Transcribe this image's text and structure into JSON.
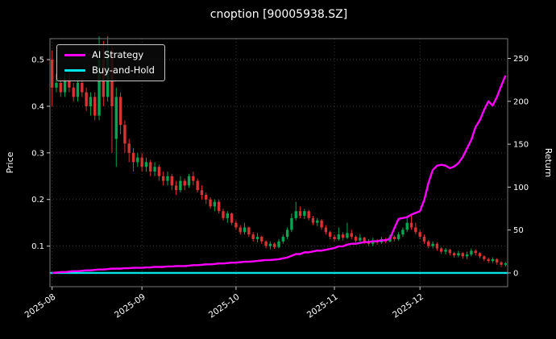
{
  "window": {
    "background": "#000000",
    "text_color": "#ffffff"
  },
  "chart_data": {
    "type": "candlestick+line",
    "title": "cnoption [90005938.SZ]",
    "ylabel_left": "Price",
    "ylabel_right": "Return",
    "legend_position": "upper-left",
    "grid": {
      "style": "dotted",
      "color": "rgba(255,255,255,0.22)"
    },
    "x_tick_labels": [
      "2025-08",
      "2025-09",
      "2025-10",
      "2025-11",
      "2025-12"
    ],
    "x_tick_indices": [
      0,
      21,
      43,
      66,
      86
    ],
    "left_ticks": [
      0.1,
      0.2,
      0.3,
      0.4,
      0.5
    ],
    "right_ticks": [
      0,
      50,
      100,
      150,
      200,
      250
    ],
    "left_range": [
      0.013,
      0.545
    ],
    "right_range": [
      -16,
      273
    ],
    "candles": {
      "up_color": "#00a650",
      "down_color": "#d83232",
      "ohlc": [
        [
          0.5,
          0.52,
          0.4,
          0.44
        ],
        [
          0.44,
          0.47,
          0.43,
          0.45
        ],
        [
          0.45,
          0.46,
          0.42,
          0.43
        ],
        [
          0.43,
          0.47,
          0.42,
          0.46
        ],
        [
          0.46,
          0.48,
          0.43,
          0.44
        ],
        [
          0.44,
          0.45,
          0.41,
          0.42
        ],
        [
          0.42,
          0.46,
          0.41,
          0.45
        ],
        [
          0.45,
          0.46,
          0.42,
          0.43
        ],
        [
          0.43,
          0.44,
          0.39,
          0.4
        ],
        [
          0.4,
          0.43,
          0.38,
          0.42
        ],
        [
          0.42,
          0.43,
          0.37,
          0.38
        ],
        [
          0.38,
          0.55,
          0.37,
          0.5
        ],
        [
          0.5,
          0.54,
          0.4,
          0.42
        ],
        [
          0.42,
          0.55,
          0.41,
          0.52
        ],
        [
          0.52,
          0.53,
          0.3,
          0.4
        ],
        [
          0.33,
          0.44,
          0.27,
          0.42
        ],
        [
          0.42,
          0.43,
          0.34,
          0.36
        ],
        [
          0.36,
          0.37,
          0.3,
          0.32
        ],
        [
          0.32,
          0.33,
          0.28,
          0.3
        ],
        [
          0.3,
          0.31,
          0.26,
          0.28
        ],
        [
          0.28,
          0.3,
          0.27,
          0.29
        ],
        [
          0.29,
          0.3,
          0.26,
          0.27
        ],
        [
          0.27,
          0.29,
          0.26,
          0.28
        ],
        [
          0.28,
          0.285,
          0.25,
          0.26
        ],
        [
          0.26,
          0.28,
          0.25,
          0.27
        ],
        [
          0.27,
          0.275,
          0.24,
          0.25
        ],
        [
          0.25,
          0.26,
          0.23,
          0.24
        ],
        [
          0.24,
          0.26,
          0.23,
          0.25
        ],
        [
          0.25,
          0.255,
          0.22,
          0.23
        ],
        [
          0.23,
          0.24,
          0.21,
          0.22
        ],
        [
          0.22,
          0.25,
          0.215,
          0.24
        ],
        [
          0.24,
          0.245,
          0.22,
          0.23
        ],
        [
          0.23,
          0.255,
          0.225,
          0.25
        ],
        [
          0.25,
          0.26,
          0.23,
          0.24
        ],
        [
          0.24,
          0.245,
          0.215,
          0.22
        ],
        [
          0.22,
          0.23,
          0.2,
          0.21
        ],
        [
          0.21,
          0.215,
          0.19,
          0.2
        ],
        [
          0.2,
          0.205,
          0.18,
          0.185
        ],
        [
          0.185,
          0.2,
          0.175,
          0.195
        ],
        [
          0.195,
          0.2,
          0.17,
          0.175
        ],
        [
          0.175,
          0.18,
          0.155,
          0.16
        ],
        [
          0.16,
          0.175,
          0.15,
          0.17
        ],
        [
          0.17,
          0.172,
          0.145,
          0.15
        ],
        [
          0.15,
          0.155,
          0.135,
          0.14
        ],
        [
          0.14,
          0.145,
          0.125,
          0.13
        ],
        [
          0.13,
          0.15,
          0.125,
          0.14
        ],
        [
          0.14,
          0.142,
          0.12,
          0.125
        ],
        [
          0.125,
          0.13,
          0.11,
          0.115
        ],
        [
          0.115,
          0.128,
          0.108,
          0.12
        ],
        [
          0.12,
          0.122,
          0.105,
          0.11
        ],
        [
          0.11,
          0.112,
          0.095,
          0.1
        ],
        [
          0.1,
          0.11,
          0.093,
          0.105
        ],
        [
          0.105,
          0.108,
          0.094,
          0.098
        ],
        [
          0.098,
          0.115,
          0.095,
          0.11
        ],
        [
          0.11,
          0.125,
          0.105,
          0.12
        ],
        [
          0.12,
          0.14,
          0.115,
          0.135
        ],
        [
          0.135,
          0.17,
          0.13,
          0.16
        ],
        [
          0.16,
          0.195,
          0.155,
          0.175
        ],
        [
          0.175,
          0.185,
          0.16,
          0.165
        ],
        [
          0.165,
          0.18,
          0.158,
          0.175
        ],
        [
          0.175,
          0.178,
          0.155,
          0.16
        ],
        [
          0.16,
          0.165,
          0.145,
          0.15
        ],
        [
          0.15,
          0.16,
          0.143,
          0.155
        ],
        [
          0.155,
          0.158,
          0.135,
          0.14
        ],
        [
          0.14,
          0.145,
          0.125,
          0.13
        ],
        [
          0.13,
          0.133,
          0.115,
          0.12
        ],
        [
          0.12,
          0.125,
          0.11,
          0.115
        ],
        [
          0.115,
          0.14,
          0.112,
          0.125
        ],
        [
          0.125,
          0.13,
          0.112,
          0.118
        ],
        [
          0.118,
          0.15,
          0.115,
          0.128
        ],
        [
          0.128,
          0.135,
          0.115,
          0.12
        ],
        [
          0.12,
          0.123,
          0.108,
          0.112
        ],
        [
          0.112,
          0.125,
          0.105,
          0.118
        ],
        [
          0.118,
          0.12,
          0.105,
          0.11
        ],
        [
          0.11,
          0.115,
          0.1,
          0.105
        ],
        [
          0.105,
          0.118,
          0.1,
          0.112
        ],
        [
          0.112,
          0.115,
          0.103,
          0.108
        ],
        [
          0.108,
          0.12,
          0.105,
          0.115
        ],
        [
          0.115,
          0.118,
          0.106,
          0.11
        ],
        [
          0.11,
          0.125,
          0.108,
          0.12
        ],
        [
          0.12,
          0.123,
          0.11,
          0.115
        ],
        [
          0.115,
          0.13,
          0.112,
          0.125
        ],
        [
          0.125,
          0.14,
          0.12,
          0.135
        ],
        [
          0.135,
          0.165,
          0.13,
          0.15
        ],
        [
          0.15,
          0.17,
          0.135,
          0.14
        ],
        [
          0.14,
          0.15,
          0.125,
          0.13
        ],
        [
          0.13,
          0.135,
          0.115,
          0.12
        ],
        [
          0.12,
          0.125,
          0.105,
          0.11
        ],
        [
          0.11,
          0.113,
          0.095,
          0.1
        ],
        [
          0.1,
          0.11,
          0.095,
          0.105
        ],
        [
          0.105,
          0.108,
          0.09,
          0.095
        ],
        [
          0.095,
          0.098,
          0.083,
          0.088
        ],
        [
          0.088,
          0.096,
          0.082,
          0.092
        ],
        [
          0.092,
          0.094,
          0.08,
          0.085
        ],
        [
          0.085,
          0.088,
          0.075,
          0.08
        ],
        [
          0.08,
          0.09,
          0.076,
          0.085
        ],
        [
          0.085,
          0.087,
          0.073,
          0.078
        ],
        [
          0.078,
          0.088,
          0.072,
          0.082
        ],
        [
          0.082,
          0.095,
          0.078,
          0.09
        ],
        [
          0.09,
          0.093,
          0.08,
          0.085
        ],
        [
          0.085,
          0.087,
          0.074,
          0.078
        ],
        [
          0.078,
          0.08,
          0.068,
          0.072
        ],
        [
          0.072,
          0.075,
          0.064,
          0.068
        ],
        [
          0.068,
          0.076,
          0.064,
          0.072
        ],
        [
          0.072,
          0.074,
          0.06,
          0.065
        ],
        [
          0.065,
          0.068,
          0.055,
          0.06
        ],
        [
          0.06,
          0.066,
          0.056,
          0.063
        ]
      ]
    },
    "series": [
      {
        "name": "AI Strategy",
        "axis": "right",
        "color": "#ff00ff",
        "values": [
          0,
          0.5,
          1,
          1,
          1.5,
          2,
          2,
          2.5,
          3,
          3,
          3.5,
          4,
          4,
          4.5,
          5,
          5,
          5,
          5.5,
          5.5,
          6,
          6,
          6,
          6.5,
          6.5,
          7,
          7,
          7,
          7.5,
          7.5,
          8,
          8,
          8,
          8.5,
          9,
          9,
          9.5,
          10,
          10,
          10.5,
          11,
          11,
          11.5,
          12,
          12,
          12.5,
          13,
          13,
          13.5,
          14,
          14.5,
          15,
          15,
          15.5,
          16,
          17,
          18,
          20,
          22,
          22,
          24,
          24,
          25,
          26,
          26,
          27,
          28,
          29,
          31,
          31,
          33,
          34,
          34,
          35,
          36,
          36,
          37,
          37,
          38,
          38,
          40,
          52,
          63,
          64,
          65,
          68,
          70,
          72,
          85,
          105,
          120,
          125,
          126,
          125,
          122,
          124,
          128,
          135,
          145,
          155,
          170,
          178,
          190,
          200,
          195,
          205,
          218,
          230
        ]
      },
      {
        "name": "Buy-and-Hold",
        "axis": "right",
        "color": "#00e5e5",
        "constant_value": 0
      }
    ]
  }
}
